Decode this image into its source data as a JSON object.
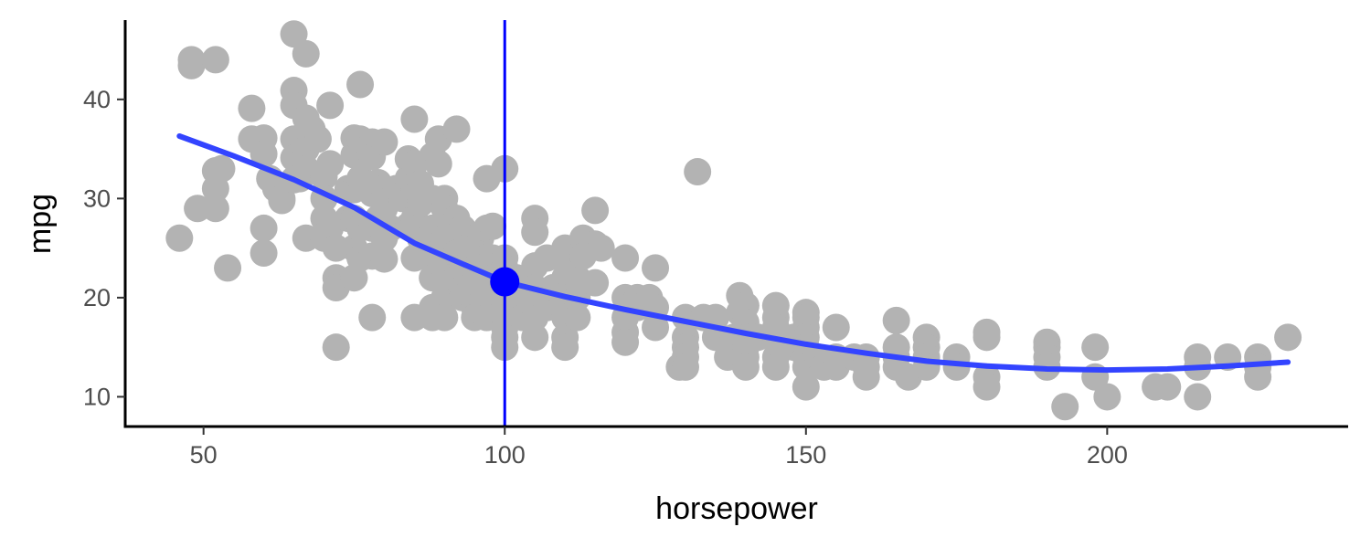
{
  "chart_data": {
    "type": "scatter",
    "title": "",
    "xlabel": "horsepower",
    "ylabel": "mpg",
    "xlim": [
      37,
      240
    ],
    "ylim": [
      7,
      48
    ],
    "x_ticks": [
      {
        "value": 50,
        "label": "50"
      },
      {
        "value": 100,
        "label": "100"
      },
      {
        "value": 150,
        "label": "150"
      },
      {
        "value": 200,
        "label": "200"
      }
    ],
    "y_ticks": [
      {
        "value": 10,
        "label": "10"
      },
      {
        "value": 20,
        "label": "20"
      },
      {
        "value": 30,
        "label": "30"
      },
      {
        "value": 40,
        "label": "40"
      }
    ],
    "grid": false,
    "legend": "none",
    "colors": {
      "points": "#b3b3b3",
      "smooth_line": "#3344ff",
      "reference_line": "#0000ff",
      "highlight_point": "#0000ff",
      "axis": "#000000"
    },
    "points": [
      [
        46,
        26
      ],
      [
        48,
        44
      ],
      [
        48,
        43.4
      ],
      [
        49,
        29
      ],
      [
        52,
        44
      ],
      [
        52,
        32.8
      ],
      [
        52,
        31
      ],
      [
        52,
        29
      ],
      [
        53,
        33
      ],
      [
        54,
        23
      ],
      [
        58,
        39.1
      ],
      [
        58,
        36
      ],
      [
        60,
        36.1
      ],
      [
        60,
        34.5
      ],
      [
        60,
        27
      ],
      [
        60,
        24.5
      ],
      [
        61,
        32
      ],
      [
        62,
        31
      ],
      [
        63,
        29.8
      ],
      [
        63,
        30
      ],
      [
        65,
        46.6
      ],
      [
        65,
        40.9
      ],
      [
        65,
        39.4
      ],
      [
        65,
        36
      ],
      [
        65,
        34.1
      ],
      [
        65,
        31.9
      ],
      [
        66,
        32
      ],
      [
        67,
        44.6
      ],
      [
        67,
        38.1
      ],
      [
        67,
        35
      ],
      [
        67,
        33
      ],
      [
        67,
        26
      ],
      [
        68,
        37
      ],
      [
        69,
        36
      ],
      [
        70,
        32.2
      ],
      [
        70,
        30
      ],
      [
        70,
        28
      ],
      [
        70,
        26
      ],
      [
        71,
        39.4
      ],
      [
        71,
        33.5
      ],
      [
        71,
        27
      ],
      [
        72,
        25
      ],
      [
        72,
        22
      ],
      [
        72,
        21
      ],
      [
        72,
        15
      ],
      [
        74,
        31
      ],
      [
        74,
        28
      ],
      [
        75,
        36.1
      ],
      [
        75,
        34.4
      ],
      [
        75,
        30.9
      ],
      [
        75,
        28
      ],
      [
        75,
        25
      ],
      [
        75,
        22
      ],
      [
        76,
        41.5
      ],
      [
        76,
        36
      ],
      [
        76,
        32
      ],
      [
        76,
        27
      ],
      [
        76,
        24
      ],
      [
        78,
        35.7
      ],
      [
        78,
        34.2
      ],
      [
        78,
        30.5
      ],
      [
        78,
        27
      ],
      [
        78,
        24.2
      ],
      [
        78,
        18
      ],
      [
        79,
        31.6
      ],
      [
        79,
        28
      ],
      [
        80,
        35.7
      ],
      [
        80,
        31
      ],
      [
        80,
        29
      ],
      [
        80,
        26
      ],
      [
        80,
        23.9
      ],
      [
        81,
        27
      ],
      [
        82,
        31
      ],
      [
        83,
        30
      ],
      [
        84,
        34
      ],
      [
        84,
        32
      ],
      [
        84,
        27.2
      ],
      [
        85,
        38
      ],
      [
        85,
        33.5
      ],
      [
        85,
        31
      ],
      [
        85,
        28
      ],
      [
        85,
        24
      ],
      [
        85,
        18
      ],
      [
        86,
        31.5
      ],
      [
        86,
        29.5
      ],
      [
        86,
        26
      ],
      [
        87,
        26
      ],
      [
        88,
        34.3
      ],
      [
        88,
        30
      ],
      [
        88,
        27
      ],
      [
        88,
        24
      ],
      [
        88,
        22
      ],
      [
        88,
        19
      ],
      [
        88,
        18
      ],
      [
        89,
        36
      ],
      [
        89,
        33.5
      ],
      [
        90,
        30
      ],
      [
        90,
        29
      ],
      [
        90,
        27
      ],
      [
        90,
        26
      ],
      [
        90,
        24
      ],
      [
        90,
        22
      ],
      [
        90,
        20
      ],
      [
        90,
        18
      ],
      [
        91,
        27.4
      ],
      [
        91,
        25
      ],
      [
        92,
        37
      ],
      [
        92,
        28
      ],
      [
        92,
        24.5
      ],
      [
        92,
        22
      ],
      [
        93,
        27
      ],
      [
        93,
        23
      ],
      [
        93,
        20
      ],
      [
        95,
        26
      ],
      [
        95,
        24
      ],
      [
        95,
        23
      ],
      [
        95,
        21
      ],
      [
        95,
        19
      ],
      [
        95,
        18
      ],
      [
        96,
        26
      ],
      [
        96,
        24
      ],
      [
        97,
        32
      ],
      [
        97,
        27
      ],
      [
        97,
        24
      ],
      [
        97,
        22
      ],
      [
        97,
        20
      ],
      [
        97,
        18
      ],
      [
        98,
        27.2
      ],
      [
        98,
        24
      ],
      [
        98,
        22
      ],
      [
        100,
        33
      ],
      [
        100,
        24
      ],
      [
        100,
        23
      ],
      [
        100,
        22
      ],
      [
        100,
        20
      ],
      [
        100,
        19
      ],
      [
        100,
        18
      ],
      [
        100,
        17
      ],
      [
        100,
        16
      ],
      [
        100,
        15
      ],
      [
        102,
        22
      ],
      [
        102,
        20
      ],
      [
        103,
        18
      ],
      [
        105,
        28
      ],
      [
        105,
        26.6
      ],
      [
        105,
        23.2
      ],
      [
        105,
        21
      ],
      [
        105,
        19
      ],
      [
        105,
        18
      ],
      [
        105,
        16
      ],
      [
        107,
        24
      ],
      [
        107,
        19
      ],
      [
        108,
        21
      ],
      [
        110,
        25
      ],
      [
        110,
        24
      ],
      [
        110,
        22
      ],
      [
        110,
        20.2
      ],
      [
        110,
        18.6
      ],
      [
        110,
        18
      ],
      [
        110,
        16
      ],
      [
        110,
        15
      ],
      [
        112,
        22
      ],
      [
        112,
        20
      ],
      [
        112,
        18
      ],
      [
        113,
        26
      ],
      [
        113,
        24.2
      ],
      [
        115,
        28.8
      ],
      [
        115,
        25.4
      ],
      [
        115,
        21.5
      ],
      [
        116,
        25
      ],
      [
        120,
        24
      ],
      [
        120,
        20
      ],
      [
        120,
        18
      ],
      [
        120,
        16.5
      ],
      [
        120,
        15.5
      ],
      [
        122,
        20
      ],
      [
        122,
        19
      ],
      [
        124,
        20
      ],
      [
        125,
        23
      ],
      [
        125,
        19
      ],
      [
        125,
        17
      ],
      [
        129,
        13
      ],
      [
        130,
        18
      ],
      [
        130,
        16
      ],
      [
        130,
        15
      ],
      [
        130,
        14
      ],
      [
        130,
        13
      ],
      [
        132,
        32.7
      ],
      [
        133,
        18
      ],
      [
        135,
        18
      ],
      [
        135,
        16
      ],
      [
        137,
        14
      ],
      [
        138,
        16
      ],
      [
        139,
        20.2
      ],
      [
        139,
        18.5
      ],
      [
        140,
        19.2
      ],
      [
        140,
        17.5
      ],
      [
        140,
        16
      ],
      [
        140,
        15
      ],
      [
        140,
        14
      ],
      [
        140,
        13
      ],
      [
        142,
        16
      ],
      [
        145,
        19.2
      ],
      [
        145,
        18
      ],
      [
        145,
        17
      ],
      [
        145,
        16
      ],
      [
        145,
        14
      ],
      [
        145,
        13
      ],
      [
        148,
        16
      ],
      [
        148,
        15
      ],
      [
        149,
        15
      ],
      [
        150,
        18.5
      ],
      [
        150,
        18
      ],
      [
        150,
        17
      ],
      [
        150,
        16
      ],
      [
        150,
        15
      ],
      [
        150,
        14
      ],
      [
        150,
        13
      ],
      [
        150,
        11
      ],
      [
        152,
        14
      ],
      [
        153,
        13
      ],
      [
        155,
        17
      ],
      [
        155,
        14
      ],
      [
        155,
        13
      ],
      [
        158,
        14
      ],
      [
        160,
        14
      ],
      [
        160,
        13
      ],
      [
        160,
        12
      ],
      [
        165,
        17.7
      ],
      [
        165,
        15
      ],
      [
        165,
        14
      ],
      [
        165,
        13
      ],
      [
        167,
        12
      ],
      [
        170,
        16
      ],
      [
        170,
        15
      ],
      [
        170,
        14
      ],
      [
        170,
        13
      ],
      [
        175,
        14
      ],
      [
        175,
        13
      ],
      [
        180,
        16.5
      ],
      [
        180,
        16
      ],
      [
        180,
        12
      ],
      [
        180,
        11
      ],
      [
        190,
        15.5
      ],
      [
        190,
        15
      ],
      [
        190,
        14
      ],
      [
        190,
        13
      ],
      [
        193,
        9
      ],
      [
        198,
        15
      ],
      [
        198,
        12
      ],
      [
        200,
        10
      ],
      [
        208,
        11
      ],
      [
        210,
        11
      ],
      [
        215,
        14
      ],
      [
        215,
        13
      ],
      [
        215,
        10
      ],
      [
        220,
        14
      ],
      [
        225,
        14
      ],
      [
        225,
        13
      ],
      [
        225,
        12
      ],
      [
        230,
        16
      ]
    ],
    "smooth_line": [
      [
        46,
        36.3
      ],
      [
        55,
        34.3
      ],
      [
        65,
        31.9
      ],
      [
        75,
        29.1
      ],
      [
        85,
        25.5
      ],
      [
        93,
        23.4
      ],
      [
        100,
        21.6
      ],
      [
        110,
        20.1
      ],
      [
        120,
        18.8
      ],
      [
        130,
        17.6
      ],
      [
        140,
        16.4
      ],
      [
        150,
        15.3
      ],
      [
        160,
        14.4
      ],
      [
        170,
        13.6
      ],
      [
        180,
        13.1
      ],
      [
        190,
        12.8
      ],
      [
        200,
        12.7
      ],
      [
        210,
        12.8
      ],
      [
        220,
        13.1
      ],
      [
        230,
        13.5
      ]
    ],
    "reference_x": 100,
    "highlight_point": [
      100,
      21.6
    ]
  }
}
